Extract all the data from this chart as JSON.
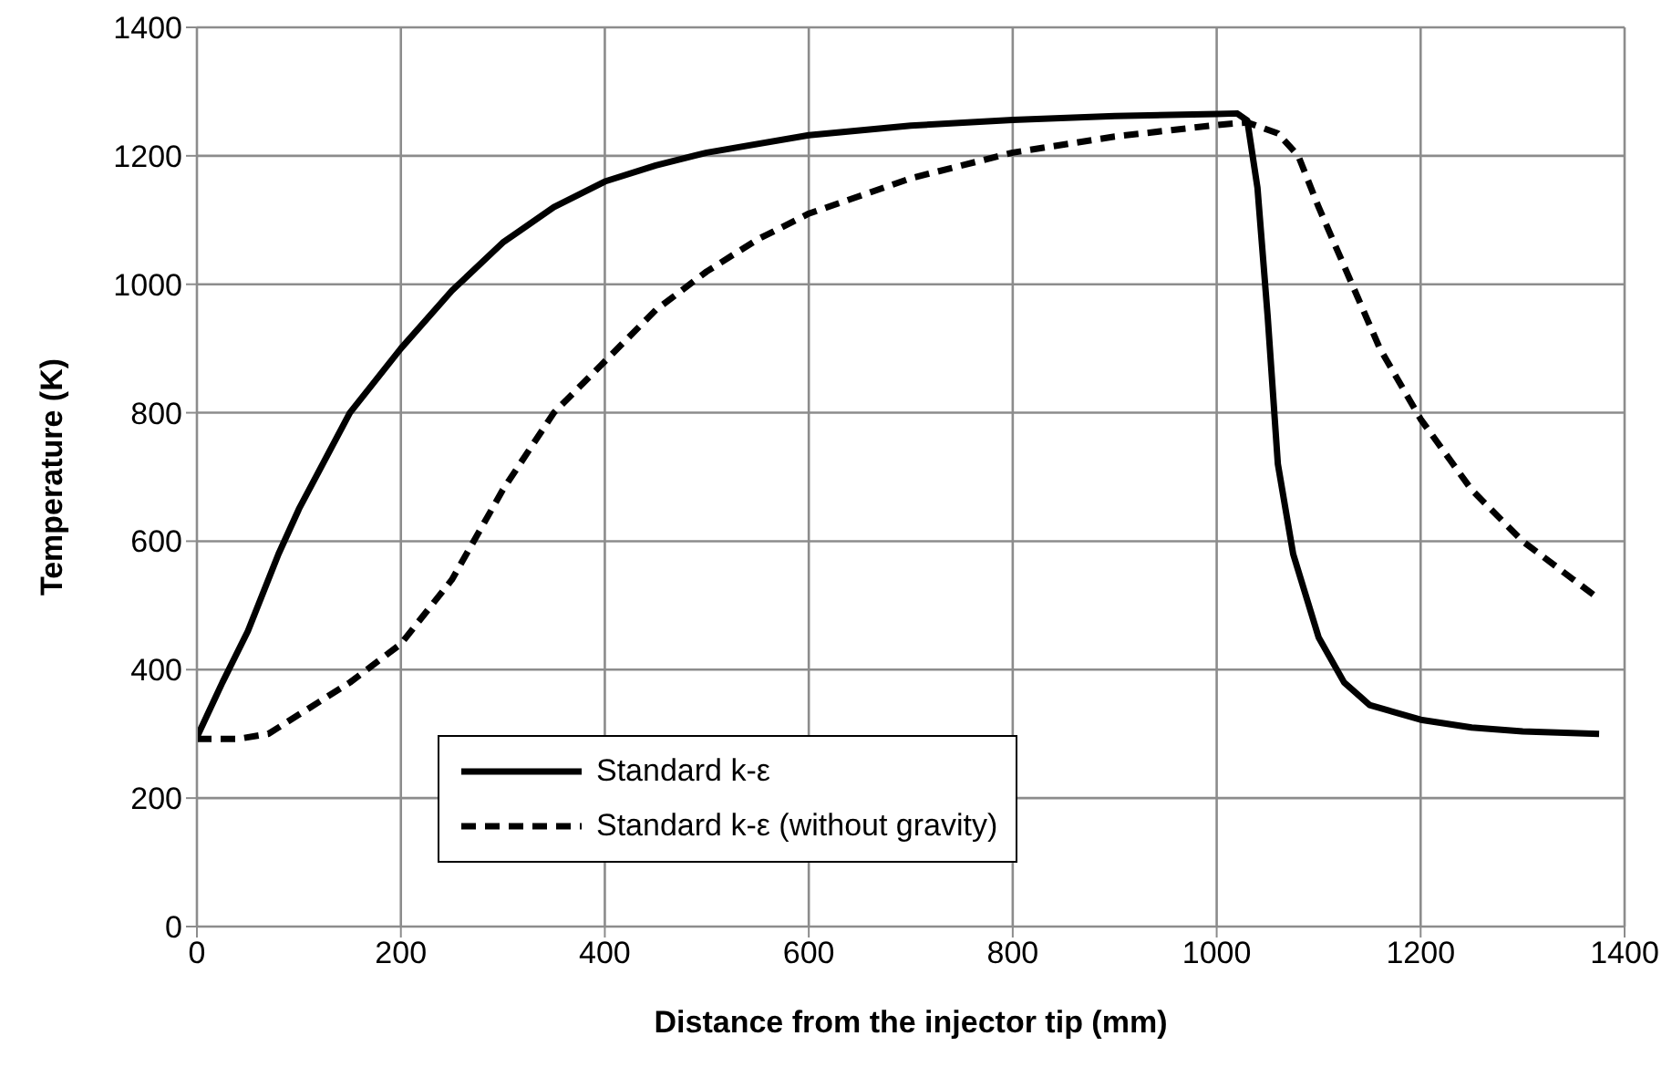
{
  "chart_data": {
    "type": "line",
    "xlabel": "Distance from the injector tip (mm)",
    "ylabel": "Temperature (K)",
    "xlim": [
      0,
      1400
    ],
    "xticks": [
      0,
      200,
      400,
      600,
      800,
      1000,
      1200,
      1400
    ],
    "ylim": [
      0,
      1400
    ],
    "yticks": [
      0,
      200,
      400,
      600,
      800,
      1000,
      1200,
      1400
    ],
    "grid": true,
    "legend": "bottom",
    "marker": "none",
    "series": [
      {
        "name": "Standard k-ε",
        "color": "#000000",
        "line_style": "solid",
        "x": [
          0,
          25,
          50,
          80,
          100,
          150,
          200,
          250,
          300,
          350,
          400,
          450,
          500,
          600,
          700,
          800,
          900,
          1000,
          1020,
          1030,
          1040,
          1050,
          1060,
          1075,
          1100,
          1125,
          1150,
          1200,
          1250,
          1300,
          1375
        ],
        "values": [
          295,
          380,
          460,
          580,
          650,
          800,
          900,
          990,
          1065,
          1120,
          1160,
          1185,
          1205,
          1232,
          1247,
          1256,
          1262,
          1265,
          1266,
          1255,
          1150,
          950,
          720,
          580,
          450,
          380,
          345,
          322,
          310,
          304,
          300
        ]
      },
      {
        "name": "Standard k-ε (without gravity)",
        "color": "#000000",
        "line_style": "dashed",
        "x": [
          0,
          40,
          70,
          100,
          150,
          200,
          250,
          300,
          350,
          400,
          450,
          500,
          550,
          600,
          700,
          800,
          900,
          1000,
          1030,
          1060,
          1080,
          1100,
          1130,
          1160,
          1200,
          1250,
          1300,
          1350,
          1375
        ],
        "values": [
          292,
          292,
          300,
          330,
          380,
          440,
          540,
          680,
          800,
          880,
          960,
          1020,
          1070,
          1110,
          1165,
          1205,
          1230,
          1248,
          1252,
          1235,
          1200,
          1120,
          1010,
          900,
          790,
          680,
          600,
          540,
          510
        ]
      }
    ]
  }
}
